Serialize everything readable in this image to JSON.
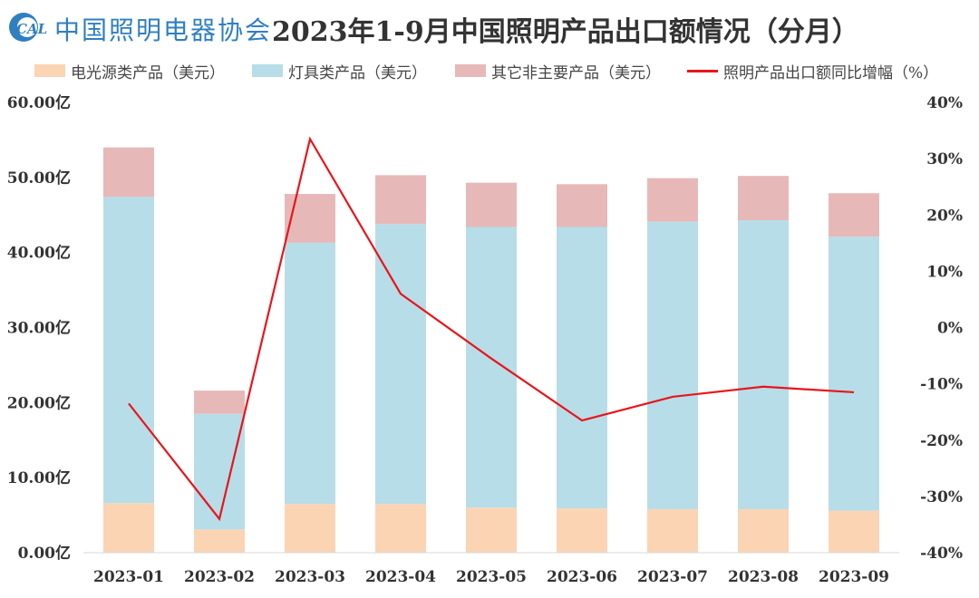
{
  "header": {
    "logo_mark": "CALI",
    "logo_text": "中国照明电器协会",
    "title": "2023年1-9月中国照明产品出口额情况（分月）"
  },
  "legend": [
    {
      "key": "light_source",
      "label": "电光源类产品（美元）"
    },
    {
      "key": "luminaires",
      "label": "灯具类产品（美元）"
    },
    {
      "key": "other",
      "label": "其它非主要产品（美元）"
    },
    {
      "key": "yoy",
      "label": "照明产品出口额同比增幅（%）"
    }
  ],
  "colors": {
    "light_source": "#fbd4b4",
    "luminaires": "#b7dde8",
    "other": "#e6b9b8",
    "yoy_line": "#e8151b",
    "axis_text": "#333333"
  },
  "chart_data": {
    "type": "bar",
    "stacked": true,
    "categories": [
      "2023-01",
      "2023-02",
      "2023-03",
      "2023-04",
      "2023-05",
      "2023-06",
      "2023-07",
      "2023-08",
      "2023-09"
    ],
    "series": [
      {
        "name": "电光源类产品（美元）",
        "key": "light_source",
        "values": [
          6.6,
          3.1,
          6.5,
          6.5,
          6.0,
          5.9,
          5.8,
          5.8,
          5.6
        ]
      },
      {
        "name": "灯具类产品（美元）",
        "key": "luminaires",
        "values": [
          40.8,
          15.4,
          34.8,
          37.3,
          37.4,
          37.5,
          38.3,
          38.5,
          36.5
        ]
      },
      {
        "name": "其它非主要产品（美元）",
        "key": "other",
        "values": [
          6.6,
          3.1,
          6.5,
          6.5,
          5.9,
          5.7,
          5.8,
          5.9,
          5.8
        ]
      }
    ],
    "line_series": {
      "name": "照明产品出口额同比增幅（%）",
      "key": "yoy",
      "axis": "right",
      "values": [
        -13.5,
        -34.0,
        33.5,
        6.0,
        -5.5,
        -16.5,
        -12.3,
        -10.5,
        -11.5
      ]
    },
    "y_left": {
      "min": 0,
      "max": 60,
      "ticks": [
        "0.00亿",
        "10.00亿",
        "20.00亿",
        "30.00亿",
        "40.00亿",
        "50.00亿",
        "60.00亿"
      ]
    },
    "y_right": {
      "min": -40,
      "max": 40,
      "ticks": [
        "-40%",
        "-30%",
        "-20%",
        "-10%",
        "0%",
        "10%",
        "20%",
        "30%",
        "40%"
      ]
    },
    "grid": false,
    "legend_position": "top"
  }
}
